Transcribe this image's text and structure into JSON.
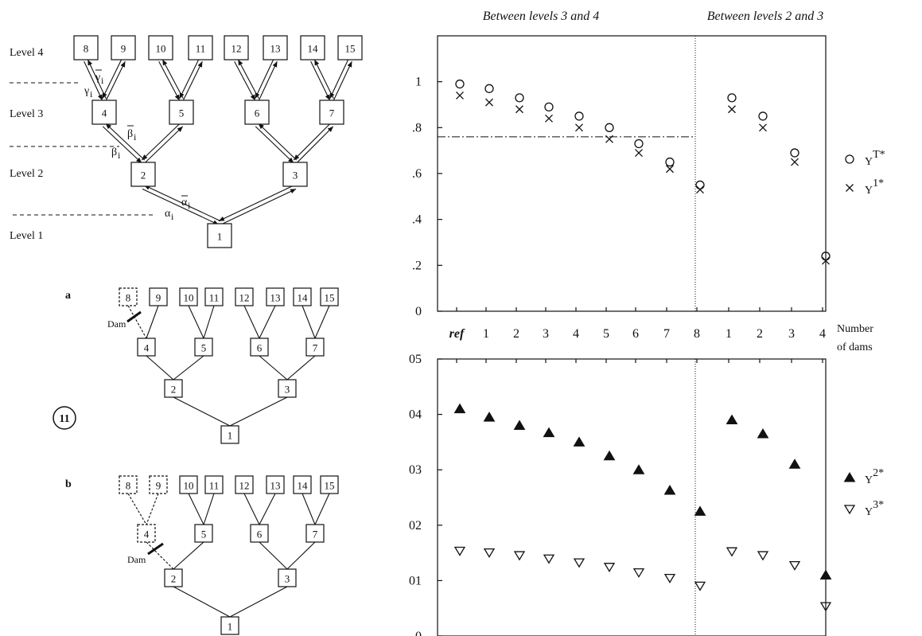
{
  "tree_top": {
    "level_labels": [
      "Level 4",
      "Level 3",
      "Level 2",
      "Level 1"
    ],
    "nodes": [
      "8",
      "9",
      "10",
      "11",
      "12",
      "13",
      "14",
      "15",
      "4",
      "5",
      "6",
      "7",
      "2",
      "3",
      "1"
    ],
    "greek": {
      "gamma": "γ",
      "gamma_bar": "γ",
      "beta": "β",
      "beta_bar": "β",
      "alpha": "α",
      "alpha_bar": "α",
      "sub": "i"
    }
  },
  "tree_a": {
    "label": "a",
    "dam_label": "Dam",
    "nodes": [
      "8",
      "9",
      "10",
      "11",
      "12",
      "13",
      "14",
      "15",
      "4",
      "5",
      "6",
      "7",
      "2",
      "3",
      "1"
    ],
    "dashed_nodes": [
      "8"
    ]
  },
  "tree_b": {
    "label": "b",
    "dam_label": "Dam",
    "nodes": [
      "8",
      "9",
      "10",
      "11",
      "12",
      "13",
      "14",
      "15",
      "4",
      "5",
      "6",
      "7",
      "2",
      "3",
      "1"
    ],
    "dashed_nodes": [
      "8",
      "9",
      "4"
    ]
  },
  "figure_marker": "11",
  "chart_data": [
    {
      "type": "scatter",
      "panel": "top",
      "section_titles": [
        "Between levels 3 and 4",
        "Between levels 2 and 3"
      ],
      "x_categories": [
        "ref",
        "1",
        "2",
        "3",
        "4",
        "5",
        "6",
        "7",
        "8",
        "1",
        "2",
        "3",
        "4"
      ],
      "xlabel": [
        "Number",
        "of dams"
      ],
      "ylim": [
        0,
        1.2
      ],
      "yticks": [
        "0",
        ".2",
        ".4",
        ".6",
        ".8",
        "1"
      ],
      "ytick_values": [
        0,
        0.2,
        0.4,
        0.6,
        0.8,
        1.0
      ],
      "reference_line": 0.76,
      "series": [
        {
          "name": "Y",
          "sup": "T*",
          "marker": "circle",
          "values": [
            0.99,
            0.97,
            0.93,
            0.89,
            0.85,
            0.8,
            0.73,
            0.65,
            0.55,
            0.93,
            0.85,
            0.69,
            0.24
          ]
        },
        {
          "name": "Y",
          "sup": "1*",
          "marker": "cross",
          "values": [
            0.94,
            0.91,
            0.88,
            0.84,
            0.8,
            0.75,
            0.69,
            0.62,
            0.53,
            0.88,
            0.8,
            0.65,
            0.22
          ]
        }
      ]
    },
    {
      "type": "scatter",
      "panel": "bottom",
      "x_categories": [
        "ref",
        "1",
        "2",
        "3",
        "4",
        "5",
        "6",
        "7",
        "8",
        "1",
        "2",
        "3",
        "4"
      ],
      "ylim": [
        0,
        0.05
      ],
      "yticks": [
        "0",
        "01",
        "02",
        "03",
        "04",
        "05"
      ],
      "ytick_values": [
        0,
        0.01,
        0.02,
        0.03,
        0.04,
        0.05
      ],
      "series": [
        {
          "name": "Y",
          "sup": "2*",
          "marker": "triangle-up-filled",
          "values": [
            0.041,
            0.0395,
            0.038,
            0.0367,
            0.035,
            0.0325,
            0.03,
            0.0263,
            0.0225,
            0.039,
            0.0365,
            0.031,
            0.011
          ]
        },
        {
          "name": "Y",
          "sup": "3*",
          "marker": "triangle-down-open",
          "values": [
            0.0153,
            0.015,
            0.0145,
            0.0139,
            0.0132,
            0.0124,
            0.0114,
            0.0104,
            0.009,
            0.0152,
            0.0145,
            0.0127,
            0.0053
          ]
        }
      ]
    }
  ]
}
